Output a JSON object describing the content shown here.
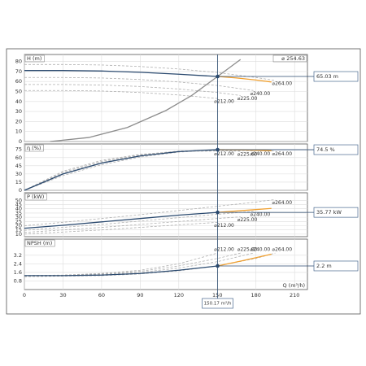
{
  "chart_data": [
    {
      "type": "line",
      "ylabel": "H (m)",
      "annotation": "⌀ 254.63",
      "xlim": [
        0,
        220
      ],
      "xticks": [
        0,
        30,
        60,
        90,
        120,
        150,
        180,
        210
      ],
      "ylim": [
        0,
        87
      ],
      "yticks": [
        0,
        10,
        20,
        30,
        40,
        50,
        60,
        70,
        80
      ],
      "operating_point": {
        "x": 150.17,
        "y": 65.03,
        "y_label": "65.03 m"
      },
      "series": [
        {
          "name": "⌀264.00",
          "color": "#b0b0b0",
          "dash": true,
          "x": [
            0,
            30,
            60,
            90,
            120,
            150,
            180,
            195
          ],
          "values": [
            77,
            77,
            76.5,
            75,
            72.5,
            69,
            64,
            61
          ]
        },
        {
          "name": "⌀240.00",
          "color": "#b0b0b0",
          "dash": true,
          "x": [
            0,
            30,
            60,
            90,
            120,
            150,
            178
          ],
          "values": [
            64,
            64,
            63.5,
            62,
            59.5,
            56,
            51
          ]
        },
        {
          "name": "⌀225.00",
          "color": "#b0b0b0",
          "dash": true,
          "x": [
            0,
            30,
            60,
            90,
            120,
            150,
            168
          ],
          "values": [
            57,
            57,
            56.5,
            55,
            52.5,
            49,
            46
          ]
        },
        {
          "name": "⌀212.00",
          "color": "#b0b0b0",
          "dash": true,
          "x": [
            0,
            30,
            60,
            90,
            120,
            150
          ],
          "values": [
            51,
            51,
            50.5,
            49,
            46.5,
            43
          ]
        },
        {
          "color": "#8c8c8c",
          "dash": false,
          "x": [
            20,
            50,
            80,
            110,
            130,
            150.17,
            168
          ],
          "values": [
            0,
            4,
            14,
            31,
            46,
            65.03,
            82
          ]
        },
        {
          "color": "#f0a030",
          "dash": false,
          "x": [
            150.17,
            165,
            180,
            192
          ],
          "values": [
            65.03,
            63.5,
            61.5,
            59.5
          ]
        },
        {
          "color": "#2b4a6f",
          "dash": false,
          "x": [
            0,
            30,
            60,
            90,
            120,
            150.17
          ],
          "values": [
            71,
            71,
            70.5,
            69.2,
            67.3,
            65.03
          ]
        }
      ]
    },
    {
      "type": "line",
      "ylabel": "η (%)",
      "xlim": [
        0,
        220
      ],
      "xticks": [
        0,
        30,
        60,
        90,
        120,
        150,
        180,
        210
      ],
      "ylim": [
        0,
        85
      ],
      "yticks": [
        0,
        15,
        30,
        45,
        60,
        75
      ],
      "operating_point": {
        "x": 150.17,
        "y": 74.5,
        "y_label": "74.5 %"
      },
      "series": [
        {
          "name": "⌀264.00",
          "color": "#b0b0b0",
          "dash": true,
          "x": [
            0,
            30,
            60,
            90,
            120,
            150,
            180,
            195
          ],
          "values": [
            0,
            27,
            47,
            61,
            70,
            74,
            73.5,
            72
          ]
        },
        {
          "name": "⌀240.00",
          "color": "#b0b0b0",
          "dash": true,
          "x": [
            0,
            30,
            60,
            90,
            120,
            150,
            178
          ],
          "values": [
            0,
            31,
            51,
            64,
            72,
            74,
            72.5
          ]
        },
        {
          "name": "⌀225.00",
          "color": "#b0b0b0",
          "dash": true,
          "x": [
            0,
            30,
            60,
            90,
            120,
            150,
            168
          ],
          "values": [
            0,
            33,
            53,
            65,
            72,
            73,
            71.5
          ]
        },
        {
          "name": "⌀212.00",
          "color": "#b0b0b0",
          "dash": true,
          "x": [
            0,
            30,
            60,
            90,
            120,
            150
          ],
          "values": [
            0,
            35,
            55,
            66,
            71.5,
            72
          ]
        },
        {
          "color": "#f0a030",
          "dash": false,
          "x": [
            150.17,
            170,
            192
          ],
          "values": [
            74.5,
            74,
            72.5
          ]
        },
        {
          "color": "#2b4a6f",
          "dash": false,
          "x": [
            0,
            30,
            60,
            90,
            120,
            150.17
          ],
          "values": [
            0,
            30,
            50,
            63,
            71,
            74.5
          ]
        }
      ]
    },
    {
      "type": "line",
      "ylabel": "P (kW)",
      "xlim": [
        0,
        220
      ],
      "xticks": [
        0,
        30,
        60,
        90,
        120,
        150,
        180,
        210
      ],
      "ylim": [
        7,
        59
      ],
      "yticks": [
        10,
        15,
        20,
        25,
        30,
        35,
        40,
        45,
        50
      ],
      "operating_point": {
        "x": 150.17,
        "y": 35.77,
        "y_label": "35.77 kW"
      },
      "series": [
        {
          "name": "⌀264.00",
          "color": "#b0b0b0",
          "dash": true,
          "x": [
            0,
            30,
            60,
            90,
            120,
            150,
            180,
            195
          ],
          "values": [
            20,
            24,
            28.5,
            33,
            38,
            43,
            48,
            51
          ]
        },
        {
          "name": "⌀240.00",
          "color": "#b0b0b0",
          "dash": true,
          "x": [
            0,
            30,
            60,
            90,
            120,
            150,
            178
          ],
          "values": [
            14.5,
            18,
            21.5,
            25.5,
            29.5,
            33.5,
            37
          ]
        },
        {
          "name": "⌀225.00",
          "color": "#b0b0b0",
          "dash": true,
          "x": [
            0,
            30,
            60,
            90,
            120,
            150,
            168
          ],
          "values": [
            12,
            15,
            18,
            21.5,
            25,
            28.5,
            30.5
          ]
        },
        {
          "name": "⌀212.00",
          "color": "#b0b0b0",
          "dash": true,
          "x": [
            0,
            30,
            60,
            90,
            120,
            150
          ],
          "values": [
            10,
            12.5,
            15,
            18,
            21,
            24
          ]
        },
        {
          "color": "#f0a030",
          "dash": false,
          "x": [
            150.17,
            170,
            192
          ],
          "values": [
            35.77,
            38,
            40.5
          ]
        },
        {
          "color": "#2b4a6f",
          "dash": false,
          "x": [
            0,
            30,
            60,
            90,
            120,
            150.17
          ],
          "values": [
            17,
            20.5,
            24.5,
            28.5,
            32.5,
            35.77
          ]
        }
      ]
    },
    {
      "type": "line",
      "ylabel": "NPSH (m)",
      "xlabel": "Q (m³/h)",
      "xlim": [
        0,
        220
      ],
      "xticks": [
        0,
        30,
        60,
        90,
        120,
        150,
        180,
        210
      ],
      "ylim": [
        0,
        4.7
      ],
      "yticks": [
        0.8,
        1.6,
        2.4,
        3.2
      ],
      "operating_point": {
        "x": 150.17,
        "y": 2.2,
        "y_label": "2.2 m",
        "x_label": "150.17 m³/h"
      },
      "series": [
        {
          "name": "⌀212.00",
          "color": "#b0b0b0",
          "dash": true,
          "x": [
            0,
            30,
            60,
            90,
            120,
            150
          ],
          "values": [
            1.3,
            1.35,
            1.5,
            1.8,
            2.4,
            3.4
          ]
        },
        {
          "name": "⌀225.00",
          "color": "#b0b0b0",
          "dash": true,
          "x": [
            0,
            30,
            60,
            90,
            120,
            150,
            168
          ],
          "values": [
            1.3,
            1.33,
            1.45,
            1.7,
            2.2,
            2.9,
            3.4
          ]
        },
        {
          "name": "⌀240.00",
          "color": "#b0b0b0",
          "dash": true,
          "x": [
            0,
            30,
            60,
            90,
            120,
            150,
            178
          ],
          "values": [
            1.25,
            1.3,
            1.4,
            1.6,
            2.0,
            2.6,
            3.4
          ]
        },
        {
          "name": "⌀264.00",
          "color": "#b0b0b0",
          "dash": true,
          "x": [
            0,
            30,
            60,
            90,
            120,
            150,
            180,
            195
          ],
          "values": [
            1.2,
            1.25,
            1.3,
            1.45,
            1.75,
            2.2,
            2.9,
            3.4
          ]
        },
        {
          "color": "#f0a030",
          "dash": false,
          "x": [
            150.17,
            170,
            192
          ],
          "values": [
            2.2,
            2.7,
            3.3
          ]
        },
        {
          "color": "#2b4a6f",
          "dash": false,
          "x": [
            0,
            30,
            60,
            90,
            120,
            150.17
          ],
          "values": [
            1.3,
            1.3,
            1.35,
            1.5,
            1.8,
            2.2
          ]
        }
      ]
    }
  ]
}
